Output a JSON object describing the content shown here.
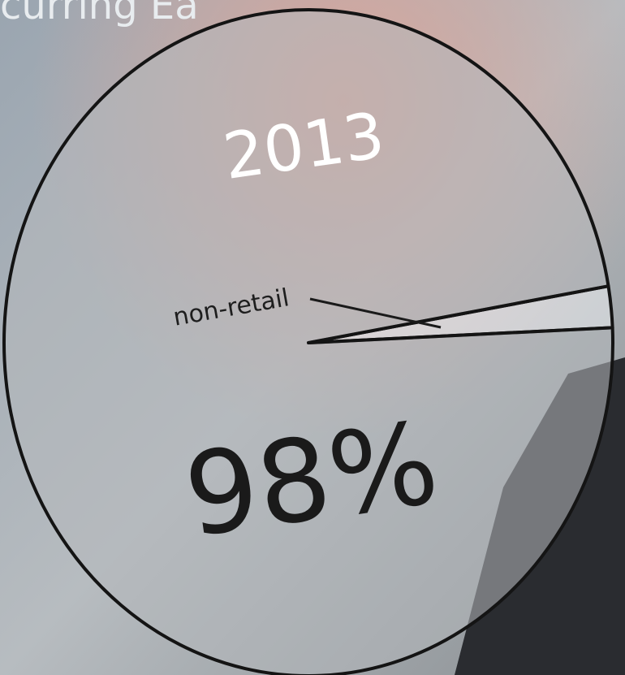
{
  "header": {
    "text": "curring Ea"
  },
  "chart_data": {
    "type": "pie",
    "title": "2013",
    "categories": [
      "non-retail",
      null
    ],
    "values": [
      2,
      98
    ],
    "value_labels": [
      null,
      "98%"
    ],
    "colors": [
      "#eef1f4",
      "#b4b8bb"
    ]
  }
}
